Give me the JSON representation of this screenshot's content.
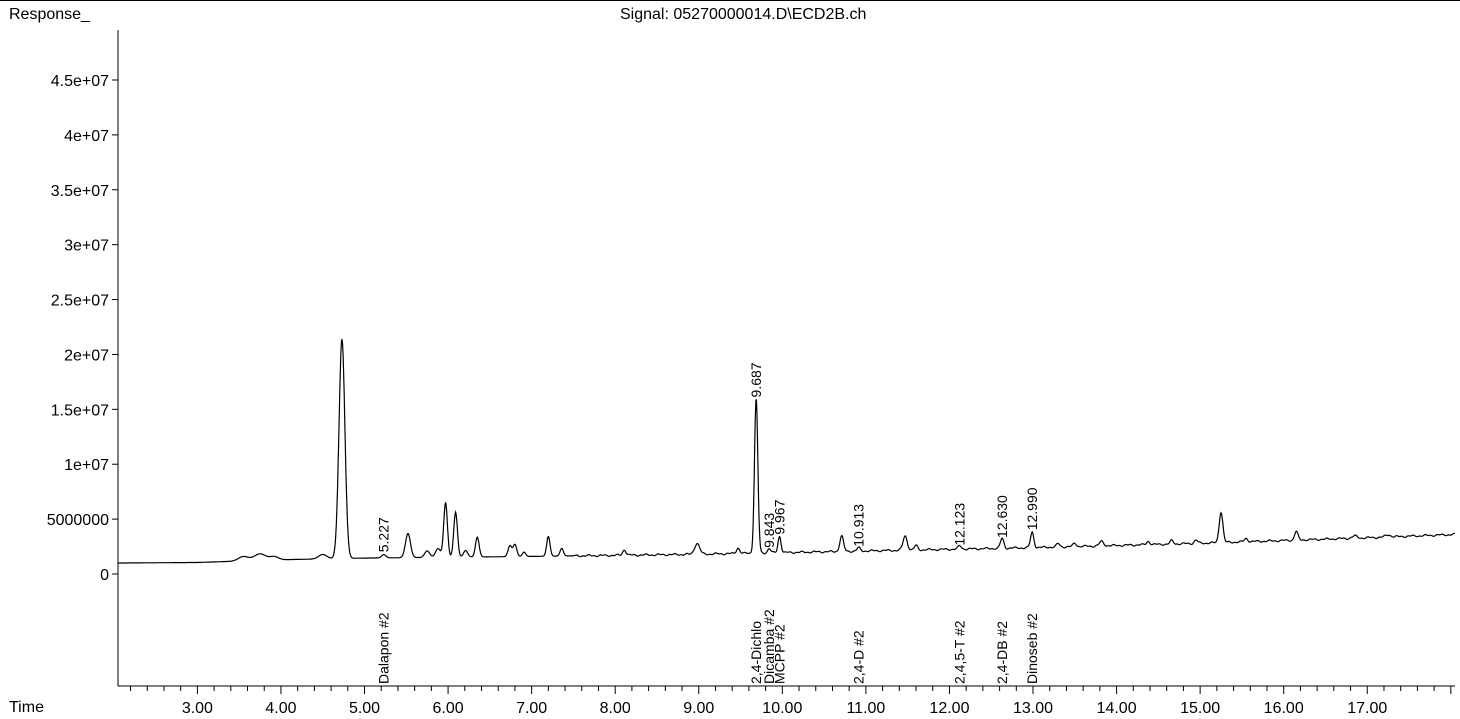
{
  "chart_data": {
    "type": "line",
    "title": "Signal: 05270000014.D\\ECD2B.ch",
    "ylabel": "Response_",
    "xlabel": "Time",
    "xlim": [
      2.05,
      18.05
    ],
    "ylim": [
      0,
      50000000
    ],
    "x_ticks": [
      3.0,
      4.0,
      5.0,
      6.0,
      7.0,
      8.0,
      9.0,
      10.0,
      11.0,
      12.0,
      13.0,
      14.0,
      15.0,
      16.0,
      17.0
    ],
    "x_tick_labels": [
      "3.00",
      "4.00",
      "5.00",
      "6.00",
      "7.00",
      "8.00",
      "9.00",
      "10.00",
      "11.00",
      "12.00",
      "13.00",
      "14.00",
      "15.00",
      "16.00",
      "17.00"
    ],
    "y_ticks": [
      0,
      5000000,
      10000000,
      15000000,
      20000000,
      25000000,
      30000000,
      35000000,
      40000000,
      45000000
    ],
    "y_tick_labels": [
      "0",
      "5000000",
      "1e+07",
      "1.5e+07",
      "2e+07",
      "2.5e+07",
      "3e+07",
      "3.5e+07",
      "4e+07",
      "4.5e+07"
    ],
    "baseline": [
      [
        2.05,
        1000000
      ],
      [
        3.0,
        1050000
      ],
      [
        4.0,
        1300000
      ],
      [
        5.0,
        1450000
      ],
      [
        7.0,
        1600000
      ],
      [
        9.0,
        1800000
      ],
      [
        11.0,
        2100000
      ],
      [
        13.0,
        2400000
      ],
      [
        15.0,
        2800000
      ],
      [
        17.0,
        3300000
      ],
      [
        18.05,
        3600000
      ]
    ],
    "peaks": [
      {
        "rt": 3.55,
        "height": 400000,
        "width": 0.06
      },
      {
        "rt": 3.75,
        "height": 600000,
        "width": 0.07
      },
      {
        "rt": 3.92,
        "height": 300000,
        "width": 0.05
      },
      {
        "rt": 4.5,
        "height": 400000,
        "width": 0.05
      },
      {
        "rt": 4.73,
        "height": 20000000,
        "width": 0.035
      },
      {
        "rt": 5.23,
        "height": 300000,
        "width": 0.025
      },
      {
        "rt": 5.52,
        "height": 2200000,
        "width": 0.03
      },
      {
        "rt": 5.75,
        "height": 600000,
        "width": 0.03
      },
      {
        "rt": 5.88,
        "height": 800000,
        "width": 0.03
      },
      {
        "rt": 5.97,
        "height": 5000000,
        "width": 0.022
      },
      {
        "rt": 6.09,
        "height": 4100000,
        "width": 0.022
      },
      {
        "rt": 6.21,
        "height": 600000,
        "width": 0.025
      },
      {
        "rt": 6.35,
        "height": 1800000,
        "width": 0.022
      },
      {
        "rt": 6.74,
        "height": 1000000,
        "width": 0.022
      },
      {
        "rt": 6.8,
        "height": 1100000,
        "width": 0.022
      },
      {
        "rt": 6.91,
        "height": 400000,
        "width": 0.02
      },
      {
        "rt": 7.2,
        "height": 1800000,
        "width": 0.02
      },
      {
        "rt": 7.36,
        "height": 700000,
        "width": 0.02
      },
      {
        "rt": 8.11,
        "height": 500000,
        "width": 0.02
      },
      {
        "rt": 8.98,
        "height": 1000000,
        "width": 0.03
      },
      {
        "rt": 9.47,
        "height": 500000,
        "width": 0.02
      },
      {
        "rt": 9.687,
        "height": 14100000,
        "width": 0.02
      },
      {
        "rt": 9.843,
        "height": 400000,
        "width": 0.018
      },
      {
        "rt": 9.967,
        "height": 1500000,
        "width": 0.018
      },
      {
        "rt": 10.71,
        "height": 1400000,
        "width": 0.022
      },
      {
        "rt": 10.913,
        "height": 300000,
        "width": 0.02
      },
      {
        "rt": 11.47,
        "height": 1300000,
        "width": 0.025
      },
      {
        "rt": 11.6,
        "height": 400000,
        "width": 0.02
      },
      {
        "rt": 12.123,
        "height": 300000,
        "width": 0.02
      },
      {
        "rt": 12.63,
        "height": 900000,
        "width": 0.02
      },
      {
        "rt": 12.99,
        "height": 1400000,
        "width": 0.02
      },
      {
        "rt": 13.3,
        "height": 300000,
        "width": 0.02
      },
      {
        "rt": 13.5,
        "height": 300000,
        "width": 0.02
      },
      {
        "rt": 13.82,
        "height": 400000,
        "width": 0.025
      },
      {
        "rt": 14.38,
        "height": 300000,
        "width": 0.02
      },
      {
        "rt": 14.66,
        "height": 300000,
        "width": 0.02
      },
      {
        "rt": 14.95,
        "height": 300000,
        "width": 0.02
      },
      {
        "rt": 15.25,
        "height": 2800000,
        "width": 0.022
      },
      {
        "rt": 15.55,
        "height": 300000,
        "width": 0.02
      },
      {
        "rt": 16.15,
        "height": 800000,
        "width": 0.02
      },
      {
        "rt": 16.85,
        "height": 200000,
        "width": 0.03
      },
      {
        "rt": 17.25,
        "height": 200000,
        "width": 0.03
      }
    ],
    "peak_labels": [
      {
        "rt": 5.227,
        "label": "5.227",
        "response": 1800000
      },
      {
        "rt": 9.687,
        "label": "9.687",
        "response": 15900000
      },
      {
        "rt": 9.843,
        "label": "9.843",
        "response": 2200000
      },
      {
        "rt": 9.967,
        "label": "9.967",
        "response": 3400000
      },
      {
        "rt": 10.913,
        "label": "10.913",
        "response": 2300000
      },
      {
        "rt": 12.123,
        "label": "12.123",
        "response": 2400000
      },
      {
        "rt": 12.63,
        "label": "12.630",
        "response": 3100000
      },
      {
        "rt": 12.99,
        "label": "12.990",
        "response": 3800000
      }
    ],
    "compounds": [
      {
        "rt": 5.227,
        "name": "Dalapon #2"
      },
      {
        "rt": 9.687,
        "name": "2,4-Dichlo"
      },
      {
        "rt": 9.843,
        "name": "Dicamba #2"
      },
      {
        "rt": 9.967,
        "name": "MCPP #2"
      },
      {
        "rt": 10.913,
        "name": "2,4-D #2"
      },
      {
        "rt": 12.123,
        "name": "2,4,5-T #2"
      },
      {
        "rt": 12.63,
        "name": "2,4-DB #2"
      },
      {
        "rt": 12.99,
        "name": "Dinoseb #2"
      }
    ],
    "grid": false,
    "line_color": "#000000"
  }
}
